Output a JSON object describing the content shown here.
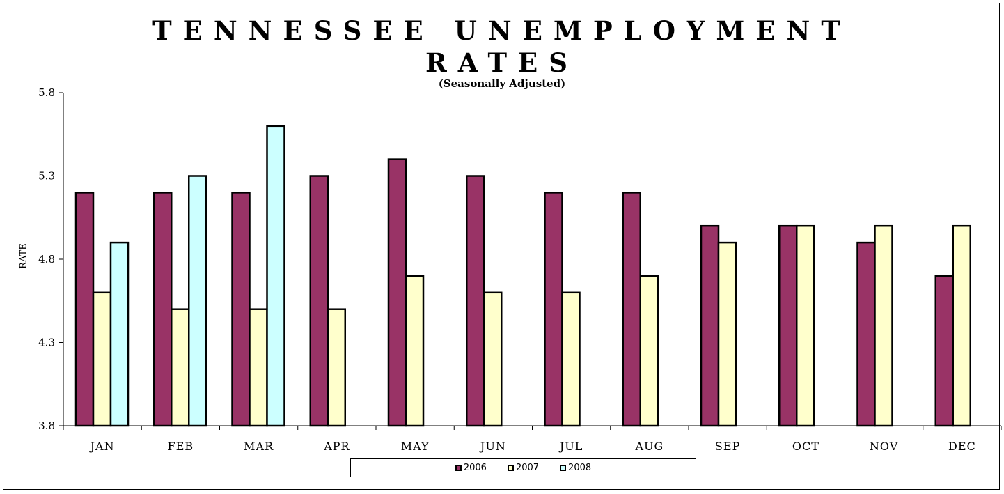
{
  "chart_data": {
    "type": "bar",
    "title_line1": "TENNESSEE UNEMPLOYMENT",
    "title_line2": "RATES",
    "subtitle": "(Seasonally Adjusted)",
    "xlabel": "",
    "ylabel": "RATE",
    "ylim": [
      3.8,
      5.8
    ],
    "yticks": [
      "3.8",
      "4.3",
      "4.8",
      "5.3",
      "5.8"
    ],
    "categories": [
      "JAN",
      "FEB",
      "MAR",
      "APR",
      "MAY",
      "JUN",
      "JUL",
      "AUG",
      "SEP",
      "OCT",
      "NOV",
      "DEC"
    ],
    "series": [
      {
        "name": "2006",
        "color": "#993366",
        "values": [
          5.2,
          5.2,
          5.2,
          5.3,
          5.4,
          5.3,
          5.2,
          5.2,
          5.0,
          5.0,
          4.9,
          4.7
        ]
      },
      {
        "name": "2007",
        "color": "#FFFFCC",
        "values": [
          4.6,
          4.5,
          4.5,
          4.5,
          4.7,
          4.6,
          4.6,
          4.7,
          4.9,
          5.0,
          5.0,
          5.0
        ]
      },
      {
        "name": "2008",
        "color": "#CCFFFF",
        "values": [
          4.9,
          5.3,
          5.6,
          null,
          null,
          null,
          null,
          null,
          null,
          null,
          null,
          null
        ]
      }
    ],
    "grid": false,
    "legend_position": "bottom"
  }
}
